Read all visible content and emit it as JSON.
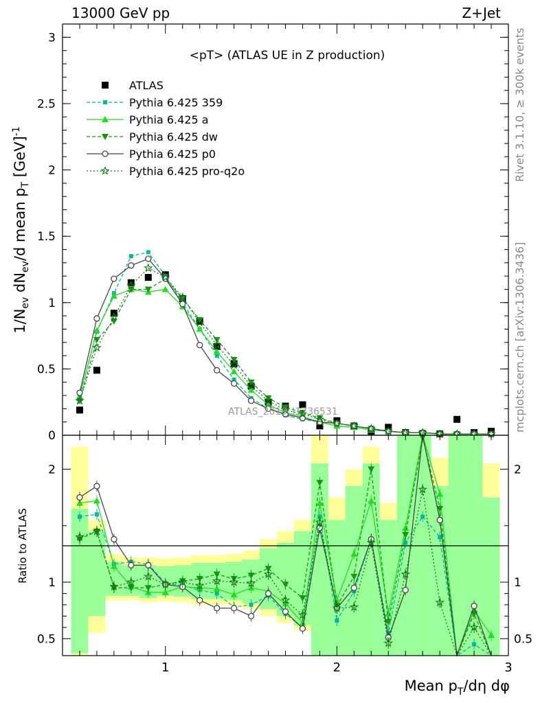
{
  "header": {
    "left": "13000 GeV pp",
    "right": "Z+Jet"
  },
  "side": {
    "top": "Rivet 3.1.10, ≥ 300k events",
    "bottom": "mcplots.cern.ch [arXiv:1306.3436]"
  },
  "watermark": "ATLAS_2019_I1736531",
  "chart_data": [
    {
      "type": "line",
      "title": "<pT> (ATLAS UE in Z production)",
      "xlabel": "Mean p_T/dη dφ",
      "ylabel": "1/N_ev dN_ev/d mean p_T [GeV]^-1",
      "xlim": [
        0.4,
        3.0
      ],
      "ylim": [
        0,
        3.1
      ],
      "y_ticks": [
        "0",
        "0.5",
        "1",
        "1.5",
        "2",
        "2.5",
        "3"
      ],
      "x_ticks": [
        "1",
        "2",
        "3"
      ],
      "legend_position": "top-left",
      "x": [
        0.5,
        0.6,
        0.7,
        0.8,
        0.9,
        1.0,
        1.1,
        1.2,
        1.3,
        1.4,
        1.5,
        1.6,
        1.7,
        1.8,
        1.9,
        2.0,
        2.1,
        2.2,
        2.3,
        2.4,
        2.5,
        2.6,
        2.7,
        2.8,
        2.9
      ],
      "series": [
        {
          "name": "ATLAS",
          "color": "#000000",
          "values": [
            0.19,
            0.49,
            0.92,
            1.15,
            1.19,
            1.21,
            1.03,
            0.86,
            0.67,
            0.54,
            0.37,
            0.25,
            0.22,
            0.23,
            0.07,
            0.11,
            0.07,
            0.03,
            0.06,
            0.02,
            0.01,
            0.01,
            0.12,
            0.02,
            0.03
          ]
        },
        {
          "name": "Pythia 6.425 359",
          "color": "#00b89c",
          "values": [
            0.3,
            0.78,
            1.07,
            1.35,
            1.38,
            1.2,
            1.0,
            0.8,
            0.6,
            0.42,
            0.28,
            0.2,
            0.15,
            0.12,
            0.1,
            0.07,
            0.06,
            0.04,
            0.03,
            0.02,
            0.02,
            0.01,
            0.01,
            0.01,
            0.01
          ]
        },
        {
          "name": "Pythia 6.425 a",
          "color": "#22dd22",
          "values": [
            0.29,
            0.79,
            1.05,
            1.1,
            1.08,
            1.1,
            0.97,
            0.8,
            0.63,
            0.48,
            0.34,
            0.23,
            0.17,
            0.14,
            0.1,
            0.07,
            0.06,
            0.04,
            0.03,
            0.02,
            0.02,
            0.01,
            0.01,
            0.01,
            0.01
          ]
        },
        {
          "name": "Pythia 6.425 dw",
          "color": "#119911",
          "values": [
            0.26,
            0.72,
            0.86,
            1.1,
            1.1,
            1.18,
            1.03,
            0.87,
            0.72,
            0.57,
            0.4,
            0.28,
            0.21,
            0.17,
            0.13,
            0.09,
            0.07,
            0.05,
            0.03,
            0.02,
            0.02,
            0.01,
            0.01,
            0.01,
            0.01
          ]
        },
        {
          "name": "Pythia 6.425 p0",
          "color": "#444444",
          "values": [
            0.32,
            0.88,
            1.18,
            1.28,
            1.33,
            1.18,
            0.99,
            0.68,
            0.49,
            0.39,
            0.26,
            0.2,
            0.16,
            0.13,
            0.1,
            0.09,
            0.07,
            0.05,
            0.03,
            0.02,
            0.02,
            0.01,
            0.01,
            0.01,
            0.01
          ]
        },
        {
          "name": "Pythia 6.425 pro-q2o",
          "color": "#117711",
          "values": [
            0.26,
            0.66,
            0.89,
            1.13,
            1.26,
            1.19,
            1.04,
            0.85,
            0.68,
            0.53,
            0.37,
            0.26,
            0.19,
            0.16,
            0.12,
            0.09,
            0.07,
            0.05,
            0.03,
            0.02,
            0.02,
            0.01,
            0.01,
            0.01,
            0.01
          ]
        }
      ]
    },
    {
      "type": "line",
      "ylabel": "Ratio to ATLAS",
      "xlim": [
        0.4,
        3.0
      ],
      "ylim": [
        0.35,
        2.3
      ],
      "y_ticks": [
        "0.5",
        "1",
        "2"
      ],
      "reference_line": 1,
      "x": [
        0.5,
        0.6,
        0.7,
        0.8,
        0.9,
        1.0,
        1.1,
        1.2,
        1.3,
        1.4,
        1.5,
        1.6,
        1.7,
        1.8,
        1.9,
        2.0,
        2.1,
        2.2,
        2.3,
        2.4,
        2.5,
        2.6,
        2.7,
        2.8,
        2.9
      ],
      "bands": {
        "yellow": {
          "color": "#ffff99",
          "low": [
            0.35,
            0.55,
            0.84,
            0.84,
            0.82,
            0.83,
            0.82,
            0.8,
            0.8,
            0.8,
            0.76,
            0.7,
            0.64,
            0.57,
            0.35,
            0.35,
            0.35,
            0.35,
            0.35,
            0.35,
            0.35,
            0.35,
            0.35,
            0.35,
            0.35
          ],
          "high": [
            2.2,
            1.55,
            1.25,
            1.22,
            1.22,
            1.21,
            1.22,
            1.24,
            1.24,
            1.25,
            1.28,
            1.38,
            1.45,
            1.55,
            2.3,
            1.75,
            2.0,
            2.2,
            1.7,
            2.3,
            2.3,
            2.1,
            2.3,
            2.3,
            2.05
          ]
        },
        "green": {
          "color": "#99ff99",
          "low": [
            0.37,
            0.7,
            0.88,
            0.88,
            0.86,
            0.88,
            0.87,
            0.85,
            0.85,
            0.84,
            0.81,
            0.76,
            0.7,
            0.62,
            0.35,
            0.35,
            0.35,
            0.35,
            0.35,
            0.35,
            0.35,
            0.35,
            0.35,
            0.35,
            0.35
          ],
          "high": [
            1.65,
            1.45,
            1.18,
            1.15,
            1.15,
            1.14,
            1.15,
            1.17,
            1.17,
            1.18,
            1.2,
            1.3,
            1.35,
            1.45,
            2.05,
            1.55,
            1.85,
            2.05,
            1.55,
            2.3,
            2.3,
            1.85,
            2.3,
            2.3,
            1.75
          ]
        }
      },
      "series": [
        {
          "name": "Pythia 6.425 359",
          "color": "#00b89c",
          "values": [
            1.58,
            1.6,
            1.16,
            1.18,
            1.16,
            0.99,
            0.97,
            0.93,
            0.9,
            0.78,
            0.8,
            0.88,
            0.72,
            0.6,
            1.58,
            0.66,
            0.92,
            1.38,
            0.55,
            1.35,
            1.58,
            1.4,
            0.2,
            0.45,
            0.3
          ]
        },
        {
          "name": "Pythia 6.425 a",
          "color": "#22dd22",
          "values": [
            1.7,
            1.72,
            1.14,
            0.96,
            0.91,
            0.91,
            0.96,
            0.95,
            0.94,
            0.89,
            0.95,
            0.92,
            0.81,
            0.64,
            1.7,
            0.84,
            1.25,
            1.72,
            0.72,
            1.48,
            2.32,
            1.78,
            0.2,
            0.75,
            0.53
          ]
        },
        {
          "name": "Pythia 6.425 dw",
          "color": "#119911",
          "values": [
            1.38,
            1.45,
            0.95,
            0.95,
            0.95,
            0.98,
            1.01,
            1.03,
            1.07,
            1.03,
            1.06,
            1.12,
            0.98,
            0.86,
            1.88,
            0.79,
            1.05,
            2.0,
            0.65,
            1.42,
            2.28,
            1.65,
            0.2,
            0.72,
            0.32
          ]
        },
        {
          "name": "Pythia 6.425 p0",
          "color": "#444444",
          "values": [
            1.75,
            1.85,
            1.38,
            1.15,
            1.15,
            0.98,
            0.96,
            0.84,
            0.77,
            0.77,
            0.7,
            0.9,
            0.74,
            0.59,
            1.48,
            0.77,
            0.95,
            1.38,
            0.51,
            0.93,
            2.3,
            1.55,
            0.2,
            0.79,
            0.3
          ]
        },
        {
          "name": "Pythia 6.425 pro-q2o",
          "color": "#117711",
          "values": [
            1.4,
            1.45,
            0.96,
            1.0,
            1.05,
            0.98,
            1.0,
            0.97,
            1.01,
            1.0,
            0.99,
            1.07,
            0.84,
            0.71,
            1.53,
            0.77,
            0.78,
            1.35,
            0.46,
            1.07,
            1.82,
            0.82,
            0.2,
            0.6,
            0.3
          ]
        }
      ]
    }
  ]
}
